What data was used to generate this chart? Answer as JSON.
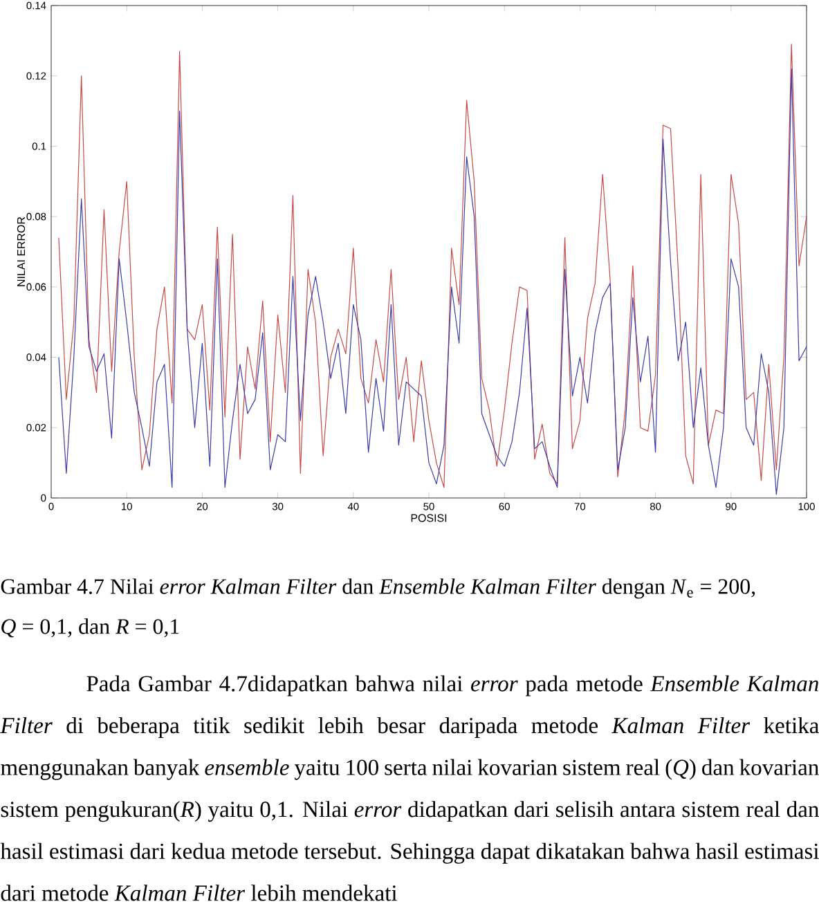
{
  "chart_data": {
    "type": "line",
    "xlabel": "POSISI",
    "ylabel": "NILAI ERROR",
    "x": [
      1,
      2,
      3,
      4,
      5,
      6,
      7,
      8,
      9,
      10,
      11,
      12,
      13,
      14,
      15,
      16,
      17,
      18,
      19,
      20,
      21,
      22,
      23,
      24,
      25,
      26,
      27,
      28,
      29,
      30,
      31,
      32,
      33,
      34,
      35,
      36,
      37,
      38,
      39,
      40,
      41,
      42,
      43,
      44,
      45,
      46,
      47,
      48,
      49,
      50,
      51,
      52,
      53,
      54,
      55,
      56,
      57,
      58,
      59,
      60,
      61,
      62,
      63,
      64,
      65,
      66,
      67,
      68,
      69,
      70,
      71,
      72,
      73,
      74,
      75,
      76,
      77,
      78,
      79,
      80,
      81,
      82,
      83,
      84,
      85,
      86,
      87,
      88,
      89,
      90,
      91,
      92,
      93,
      94,
      95,
      96,
      97,
      98,
      99,
      100
    ],
    "series": [
      {
        "color": "#c84848",
        "values": [
          0.074,
          0.028,
          0.05,
          0.12,
          0.045,
          0.03,
          0.082,
          0.036,
          0.07,
          0.09,
          0.04,
          0.008,
          0.018,
          0.048,
          0.06,
          0.027,
          0.127,
          0.048,
          0.045,
          0.055,
          0.025,
          0.077,
          0.023,
          0.075,
          0.011,
          0.043,
          0.031,
          0.056,
          0.016,
          0.052,
          0.03,
          0.086,
          0.007,
          0.065,
          0.05,
          0.012,
          0.04,
          0.048,
          0.041,
          0.071,
          0.034,
          0.027,
          0.045,
          0.033,
          0.065,
          0.028,
          0.04,
          0.016,
          0.039,
          0.022,
          0.01,
          0.003,
          0.071,
          0.055,
          0.113,
          0.09,
          0.034,
          0.025,
          0.009,
          0.025,
          0.044,
          0.06,
          0.059,
          0.011,
          0.021,
          0.007,
          0.004,
          0.074,
          0.014,
          0.022,
          0.051,
          0.061,
          0.092,
          0.062,
          0.006,
          0.025,
          0.066,
          0.02,
          0.019,
          0.035,
          0.106,
          0.105,
          0.065,
          0.012,
          0.004,
          0.092,
          0.015,
          0.025,
          0.024,
          0.092,
          0.078,
          0.028,
          0.03,
          0.005,
          0.038,
          0.008,
          0.04,
          0.129,
          0.066,
          0.08
        ]
      },
      {
        "color": "#3a3aa8",
        "values": [
          0.04,
          0.007,
          0.04,
          0.085,
          0.043,
          0.036,
          0.041,
          0.017,
          0.068,
          0.05,
          0.03,
          0.02,
          0.009,
          0.033,
          0.038,
          0.003,
          0.11,
          0.048,
          0.02,
          0.044,
          0.009,
          0.068,
          0.003,
          0.022,
          0.038,
          0.024,
          0.028,
          0.047,
          0.008,
          0.018,
          0.016,
          0.063,
          0.022,
          0.052,
          0.063,
          0.05,
          0.034,
          0.044,
          0.024,
          0.055,
          0.045,
          0.013,
          0.034,
          0.019,
          0.055,
          0.015,
          0.033,
          0.031,
          0.029,
          0.01,
          0.004,
          0.015,
          0.06,
          0.044,
          0.097,
          0.08,
          0.024,
          0.018,
          0.012,
          0.009,
          0.016,
          0.03,
          0.054,
          0.014,
          0.016,
          0.009,
          0.003,
          0.065,
          0.029,
          0.04,
          0.027,
          0.047,
          0.057,
          0.061,
          0.008,
          0.02,
          0.057,
          0.033,
          0.046,
          0.013,
          0.102,
          0.067,
          0.039,
          0.05,
          0.02,
          0.037,
          0.015,
          0.003,
          0.02,
          0.068,
          0.06,
          0.02,
          0.015,
          0.041,
          0.03,
          0.001,
          0.02,
          0.122,
          0.039,
          0.043
        ]
      }
    ],
    "xlim": [
      0,
      100
    ],
    "xticks": [
      0,
      10,
      20,
      30,
      40,
      50,
      60,
      70,
      80,
      90,
      100
    ],
    "ylim": [
      0,
      0.14
    ],
    "yticks": [
      0,
      0.02,
      0.04,
      0.06,
      0.08,
      0.1,
      0.12,
      0.14
    ],
    "grid": false,
    "annotations": [
      "Gambar 4.7 Nilai *error Kalman Filter* dan *Ensemble Kalman Filter* dengan *N*$_{e}$ = 200, *Q* = 0,1, dan *R* = 0,1",
      "Pada Gambar 4.7didapatkan bahwa nilai *error* pada metode *Ensemble Kalman Filter* di beberapa titik sedikit lebih besar daripada metode *Kalman Filter* ketika menggunakan banyak *ensemble* yaitu 100 serta nilai kovarian sistem real (*Q*) dan kovarian sistem pengukuran(*R*) yaitu 0,1. Nilai *error* didapatkan dari selisih antara sistem real dan hasil estimasi dari kedua metode tersebut. Sehingga dapat dikatakan bahwa hasil estimasi dari metode *Kalman Filter* lebih mendekati"
    ]
  }
}
